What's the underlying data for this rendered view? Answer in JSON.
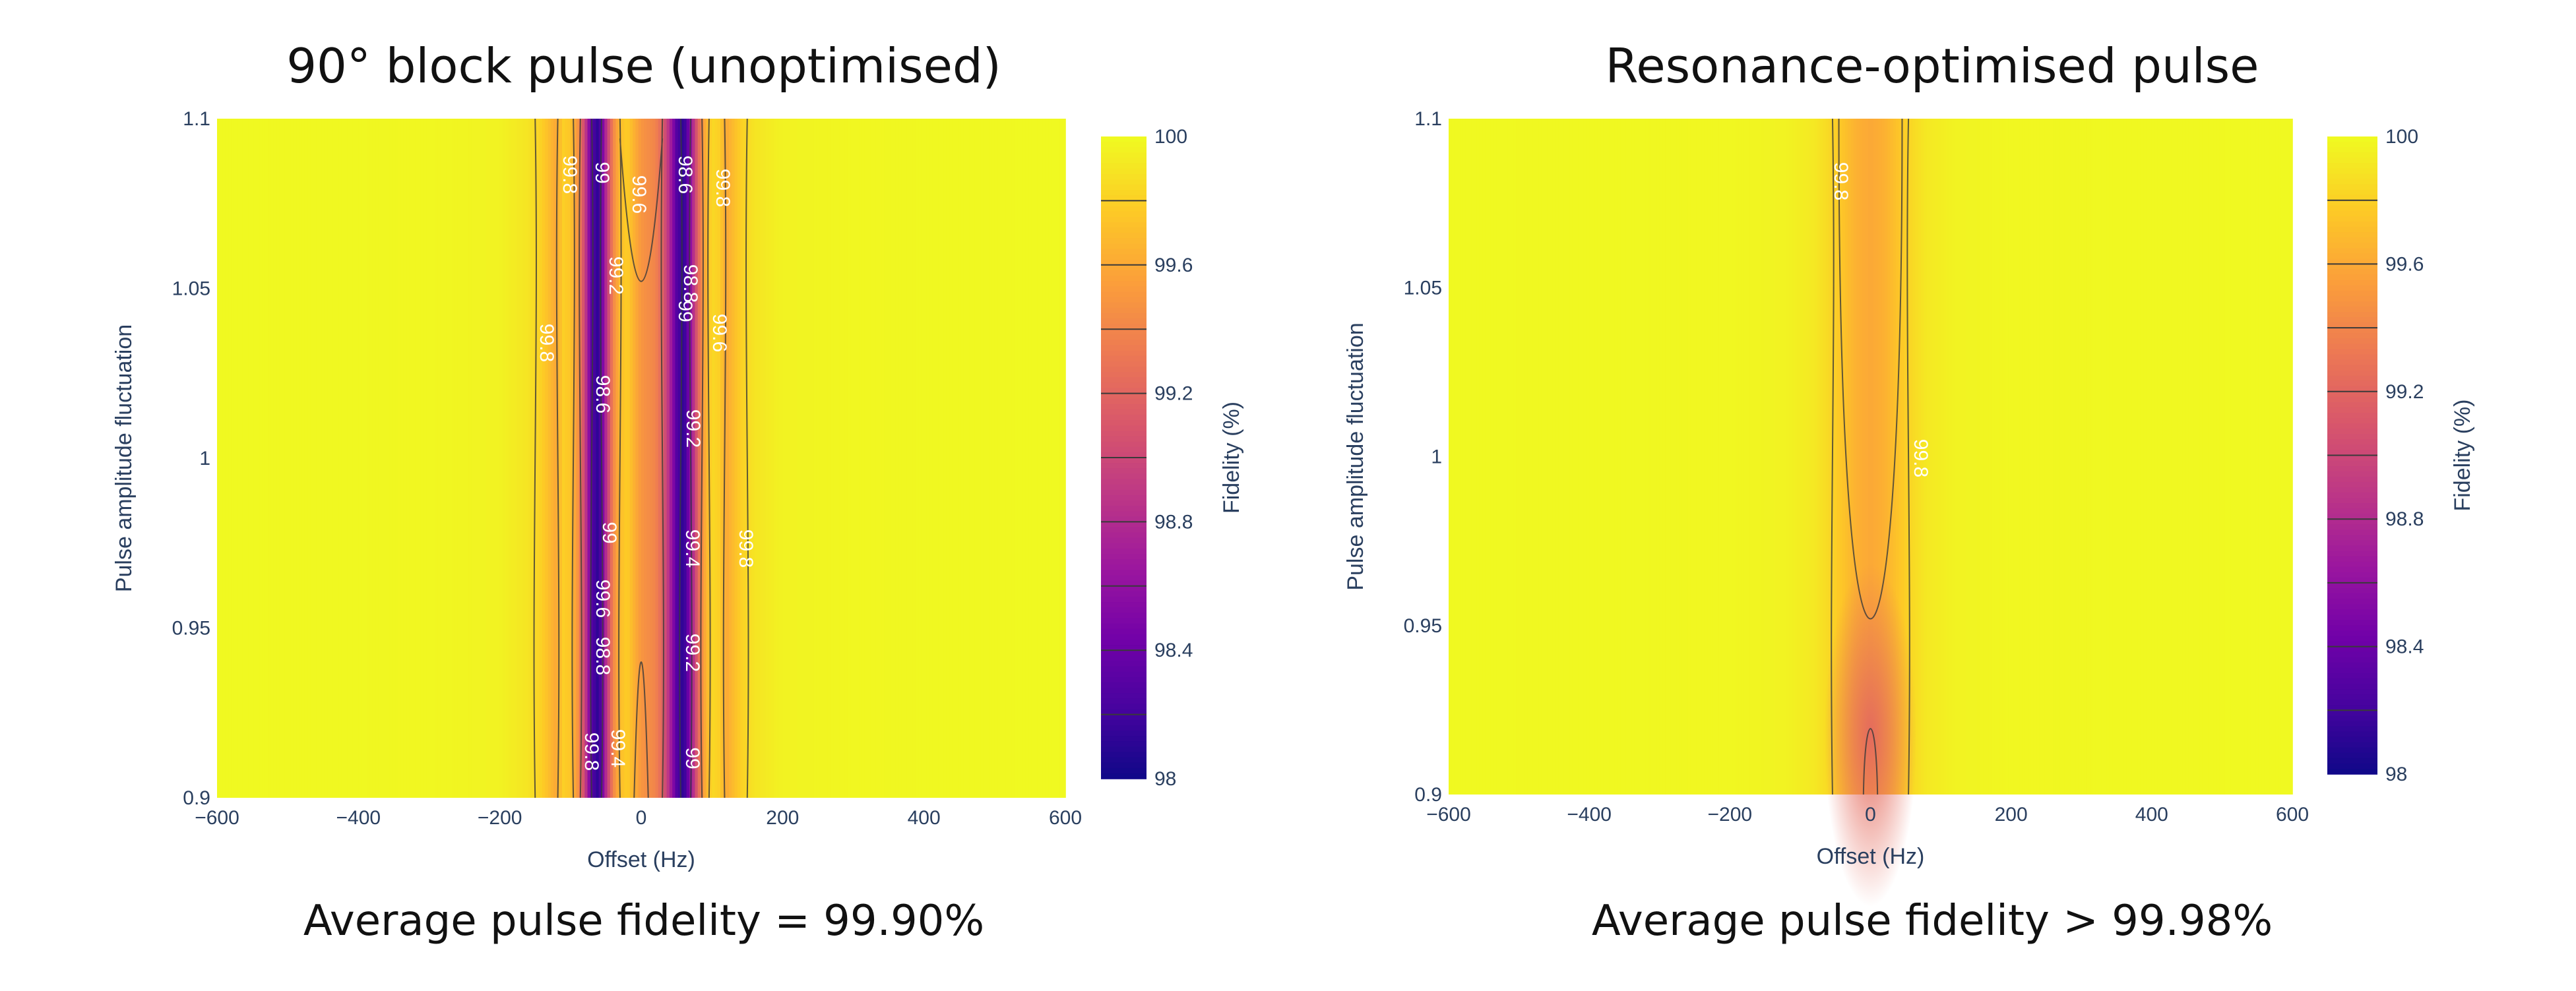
{
  "panels": [
    {
      "title": "90° block pulse (unoptimised)",
      "caption": "Average pulse fidelity = 99.90%"
    },
    {
      "title": "Resonance-optimised pulse",
      "caption": "Average pulse fidelity > 99.98%"
    }
  ],
  "colors": {
    "axis_text": "#2a3f5f",
    "title_text": "#111111",
    "contour_line": "#3a3a3a",
    "colorscale_plasma": [
      "#0d0887",
      "#46039f",
      "#7201a8",
      "#9c179e",
      "#bd3786",
      "#d8576b",
      "#ed7953",
      "#fb9f3a",
      "#fdca26",
      "#f0f921"
    ]
  },
  "chart_data": [
    {
      "type": "heatmap",
      "title": "90° block pulse (unoptimised)",
      "xlabel": "Offset (Hz)",
      "ylabel": "Pulse amplitude fluctuation",
      "xlim": [
        -600,
        600
      ],
      "ylim": [
        0.9,
        1.1
      ],
      "xticks": [
        "−600",
        "−400",
        "−200",
        "0",
        "200",
        "400",
        "600"
      ],
      "xtick_values": [
        -600,
        -400,
        -200,
        0,
        200,
        400,
        600
      ],
      "yticks": [
        "0.9",
        "0.95",
        "1",
        "1.05",
        "1.1"
      ],
      "ytick_values": [
        0.9,
        0.95,
        1.0,
        1.05,
        1.1
      ],
      "colorbar": {
        "title": "Fidelity (%)",
        "range": [
          98,
          100
        ],
        "ticks": [
          "98",
          "98.4",
          "98.8",
          "99.2",
          "99.6",
          "100"
        ],
        "tick_values": [
          98,
          98.4,
          98.8,
          99.2,
          99.6,
          100
        ],
        "contour_levels": [
          98.2,
          98.4,
          98.6,
          98.8,
          99,
          99.2,
          99.4,
          99.6,
          99.8
        ]
      },
      "fidelity_profile": {
        "offset_hz": [
          -600,
          -300,
          -200,
          -160,
          -140,
          -120,
          -110,
          -100,
          -90,
          -80,
          -70,
          -60,
          -50,
          -40,
          -30,
          -20,
          0,
          20,
          30,
          40,
          50,
          60,
          70,
          80,
          90,
          100,
          110,
          120,
          140,
          160,
          200,
          300,
          600
        ],
        "fidelity_pct": [
          100,
          99.99,
          99.97,
          99.9,
          99.8,
          99.6,
          99.8,
          99.75,
          99.5,
          99.0,
          98.3,
          98.1,
          98.8,
          99.4,
          99.7,
          99.8,
          99.5,
          99.4,
          99.2,
          98.8,
          98.3,
          98.1,
          98.6,
          99.2,
          99.6,
          99.85,
          99.8,
          99.6,
          99.8,
          99.9,
          99.97,
          99.99,
          100
        ]
      },
      "contour_labels": [
        "99.8",
        "99",
        "99.6",
        "98.6",
        "99.8",
        "99.2",
        "98.8",
        "99.6",
        "98.6",
        "99",
        "99.8",
        "99.2",
        "99",
        "99.4",
        "99.8",
        "99.6",
        "98.8",
        "99.2",
        "99.8",
        "99.4",
        "99"
      ],
      "average_fidelity_pct": 99.9
    },
    {
      "type": "heatmap",
      "title": "Resonance-optimised pulse",
      "xlabel": "Offset (Hz)",
      "ylabel": "Pulse amplitude fluctuation",
      "xlim": [
        -600,
        600
      ],
      "ylim": [
        0.9,
        1.1
      ],
      "xticks": [
        "−600",
        "−400",
        "−200",
        "0",
        "200",
        "400",
        "600"
      ],
      "xtick_values": [
        -600,
        -400,
        -200,
        0,
        200,
        400,
        600
      ],
      "yticks": [
        "0.9",
        "0.95",
        "1",
        "1.05",
        "1.1"
      ],
      "ytick_values": [
        0.9,
        0.95,
        1.0,
        1.05,
        1.1
      ],
      "colorbar": {
        "title": "Fidelity (%)",
        "range": [
          98,
          100
        ],
        "ticks": [
          "98",
          "98.4",
          "98.8",
          "99.2",
          "99.6",
          "100"
        ],
        "tick_values": [
          98,
          98.4,
          98.8,
          99.2,
          99.6,
          100
        ],
        "contour_levels": [
          98.2,
          98.4,
          98.6,
          98.8,
          99,
          99.2,
          99.4,
          99.6,
          99.8
        ]
      },
      "fidelity_profile": {
        "offset_hz": [
          -600,
          -200,
          -120,
          -80,
          -60,
          -40,
          -20,
          0,
          20,
          40,
          60,
          80,
          120,
          200,
          600
        ],
        "fidelity_pct": [
          100,
          99.99,
          99.97,
          99.92,
          99.85,
          99.75,
          99.65,
          99.6,
          99.65,
          99.75,
          99.85,
          99.92,
          99.97,
          99.99,
          100
        ]
      },
      "contour_labels": [
        "99.8",
        "99.8"
      ],
      "average_fidelity_pct": 99.98
    }
  ]
}
